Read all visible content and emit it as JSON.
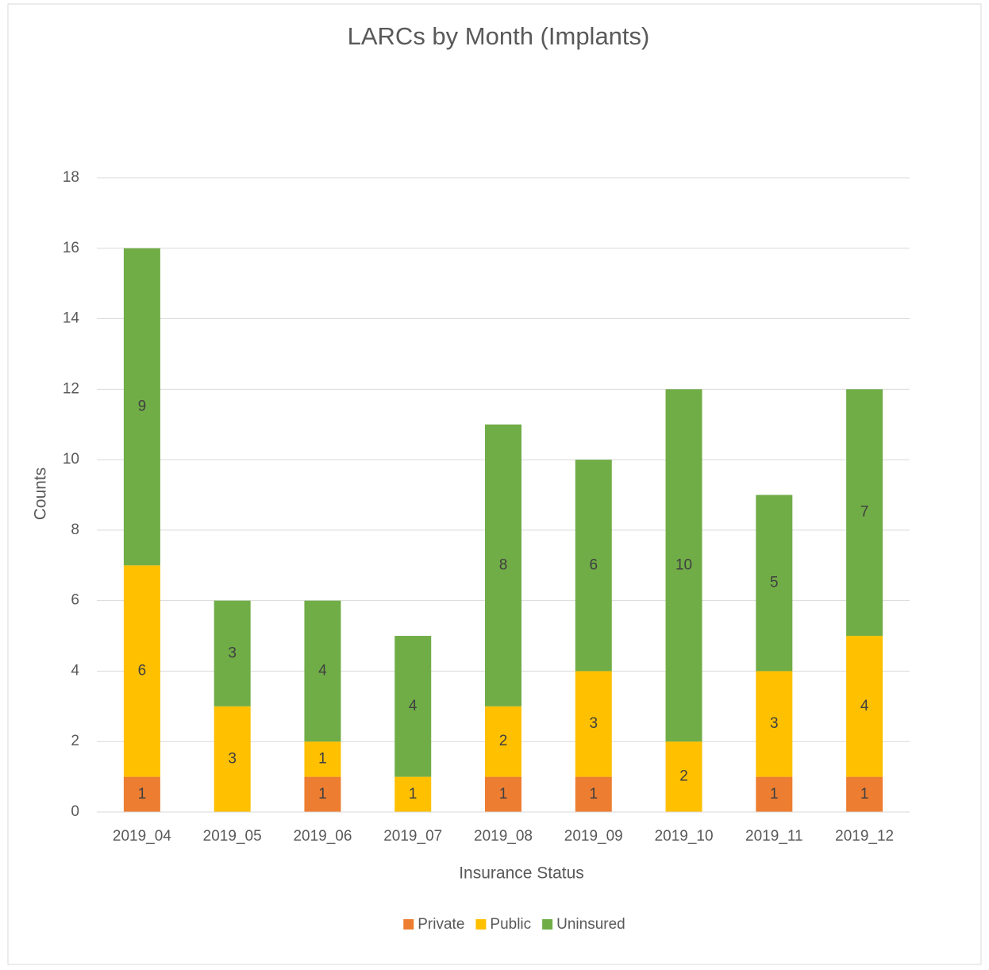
{
  "chart_data": {
    "type": "bar",
    "stacked": true,
    "title": "LARCs by Month (Implants)",
    "x_label": "Insurance Status",
    "y_label": "Counts",
    "categories": [
      "2019_04",
      "2019_05",
      "2019_06",
      "2019_07",
      "2019_08",
      "2019_09",
      "2019_10",
      "2019_11",
      "2019_12"
    ],
    "series": [
      {
        "name": "Private",
        "color": "#ED7D31",
        "values": [
          1,
          null,
          1,
          null,
          1,
          1,
          null,
          1,
          1
        ]
      },
      {
        "name": "Public",
        "color": "#FFC000",
        "values": [
          6,
          3,
          1,
          1,
          2,
          3,
          2,
          3,
          4
        ]
      },
      {
        "name": "Uninsured",
        "color": "#70AD47",
        "values": [
          9,
          3,
          4,
          4,
          8,
          6,
          10,
          5,
          7
        ]
      }
    ],
    "ylim": [
      0,
      18
    ],
    "yticks": [
      0,
      2,
      4,
      6,
      8,
      10,
      12,
      14,
      16,
      18
    ],
    "grid": true,
    "legend": "bottom"
  }
}
